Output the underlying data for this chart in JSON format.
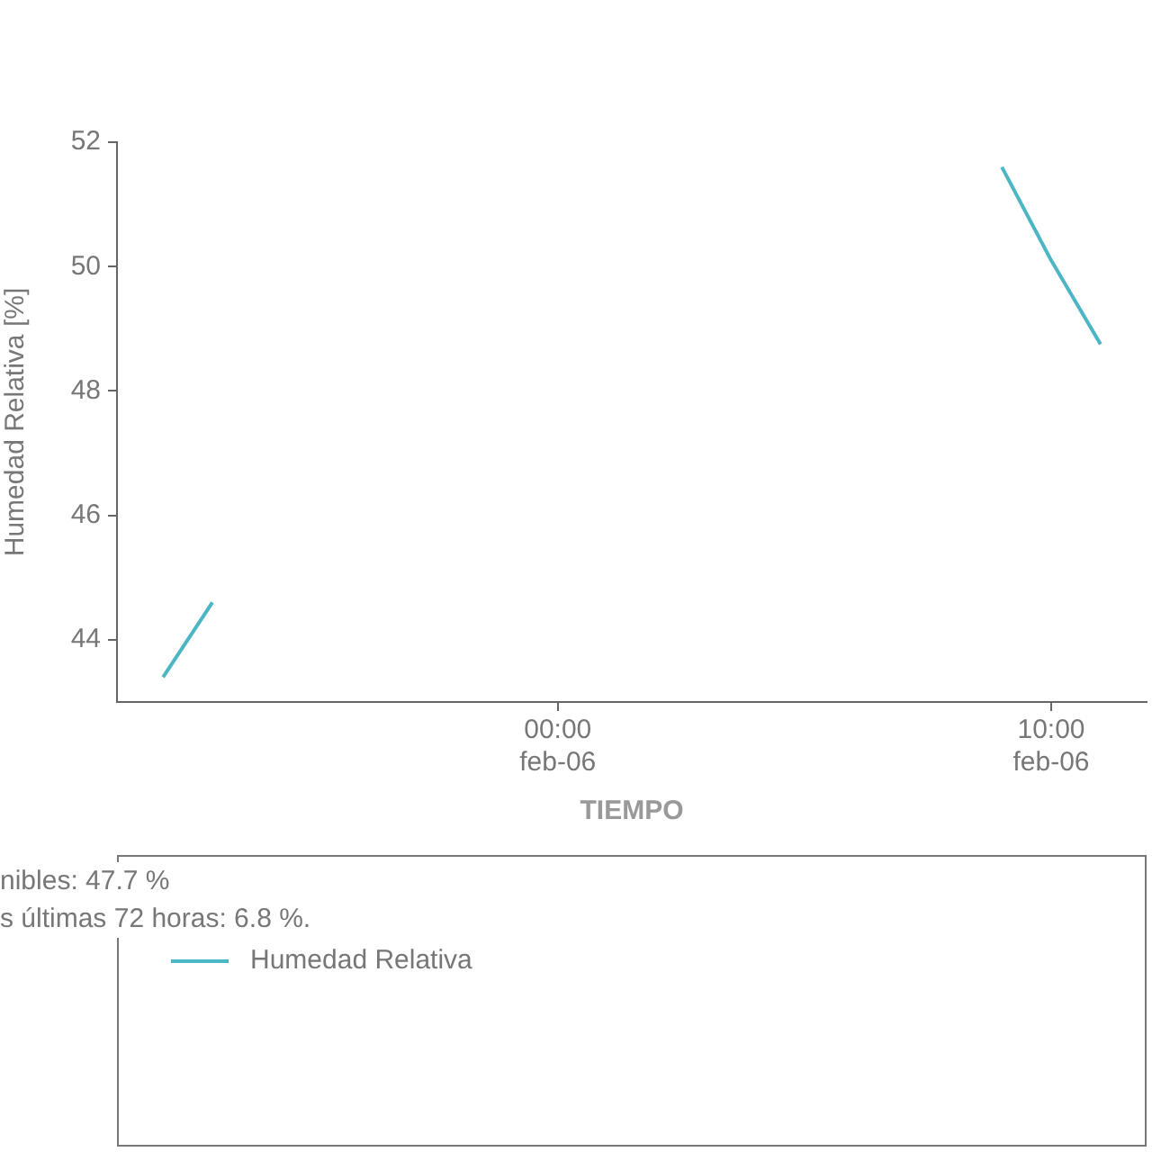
{
  "chart_data": {
    "type": "line",
    "xlabel": "TIEMPO",
    "ylabel": "Humedad Relativa [%]",
    "x": [
      "--02-05T16:00",
      "--02-05T17:00",
      "--02-05T18:00",
      "--02-06T09:00",
      "--02-06T10:00",
      "--02-06T11:00"
    ],
    "series": [
      {
        "name": "Humedad Relativa",
        "color": "#4db6c4",
        "values": [
          43.4,
          44.6,
          null,
          51.6,
          50.1,
          48.75
        ]
      }
    ],
    "xlim": [
      "--02-05T15:04",
      "--02-06T11:56"
    ],
    "xticks": [
      {
        "value": "--02-06T00:00",
        "label": "00:00\nfeb-06"
      },
      {
        "value": "--02-06T10:00",
        "label": "10:00\nfeb-06"
      }
    ],
    "ylim": [
      43,
      52
    ],
    "yticks": [
      44,
      46,
      48,
      50,
      52
    ],
    "grid": false,
    "legend": "bottom",
    "marker": "none",
    "line_style": "solid",
    "annotations": [
      "nibles: 47.7 %",
      "s últimas 72 horas: 6.8 %."
    ]
  }
}
